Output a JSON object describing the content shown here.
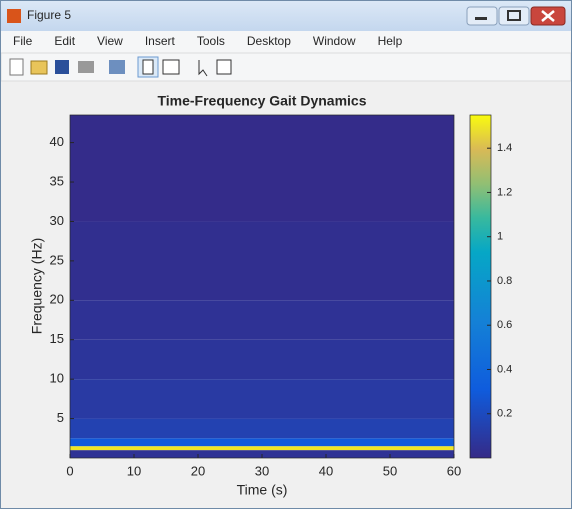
{
  "window": {
    "title": "Figure 5"
  },
  "menu": [
    "File",
    "Edit",
    "View",
    "Insert",
    "Tools",
    "Desktop",
    "Window",
    "Help"
  ],
  "chart_data": {
    "type": "heatmap",
    "title": "Time-Frequency Gait Dynamics",
    "x_label": "Time (s)",
    "y_label": "Frequency (Hz)",
    "xlim": [
      0,
      60
    ],
    "xticks": [
      0,
      10,
      20,
      30,
      40,
      50,
      60
    ],
    "ylim": [
      0,
      43.5
    ],
    "yticks": [
      5,
      10,
      15,
      20,
      25,
      30,
      35,
      40
    ],
    "y_edges": [
      0,
      1,
      1.5,
      2.5,
      5,
      10,
      15,
      20,
      30,
      43.5
    ],
    "values": [
      0.05,
      1.5,
      0.3,
      0.15,
      0.1,
      0.07,
      0.05,
      0.03,
      0.01
    ],
    "colorbar": {
      "clim": [
        0,
        1.55
      ],
      "ticks": [
        0.2,
        0.4,
        0.6,
        0.8,
        1,
        1.2,
        1.4
      ]
    }
  }
}
